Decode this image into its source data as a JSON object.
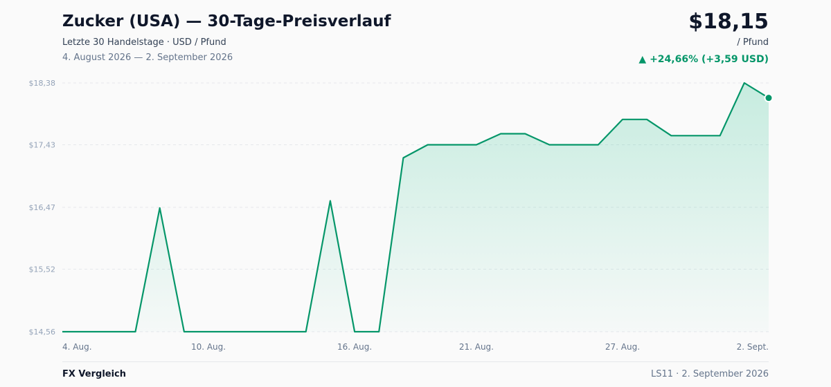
{
  "header": {
    "title": "Zucker (USA) — 30-Tage-Preisverlauf",
    "subtitle": "Letzte 30 Handelstage · USD / Pfund",
    "date_range": "4. August 2026 — 2. September 2026",
    "price": "$18,15",
    "unit": "/ Pfund",
    "change": "▲ +24,66% (+3,59 USD)"
  },
  "footer": {
    "brand": "FX Vergleich",
    "source": "LS11 · 2. September 2026"
  },
  "colors": {
    "line": "#059669",
    "fill": "#10b981",
    "grid": "#e5e7eb"
  },
  "chart_data": {
    "type": "area",
    "title": "Zucker (USA) — 30-Tage-Preisverlauf",
    "ylabel": "",
    "xlabel": "",
    "ylim": [
      14.56,
      18.38
    ],
    "grid": true,
    "ytick_values": [
      18.38,
      17.43,
      16.47,
      15.52,
      14.56
    ],
    "ytick_labels": [
      "$18,38",
      "$17,43",
      "$16,47",
      "$15,52",
      "$14,56"
    ],
    "xtick_index": [
      0,
      6,
      12,
      17,
      23,
      29
    ],
    "xtick_labels": [
      "4. Aug.",
      "10. Aug.",
      "16. Aug.",
      "21. Aug.",
      "27. Aug.",
      "2. Sept."
    ],
    "series": [
      {
        "values": [
          14.56,
          14.56,
          14.56,
          14.56,
          16.46,
          14.56,
          14.56,
          14.56,
          14.56,
          14.56,
          14.56,
          16.57,
          14.56,
          14.56,
          17.23,
          17.43,
          17.43,
          17.43,
          17.6,
          17.6,
          17.43,
          17.43,
          17.43,
          17.82,
          17.82,
          17.57,
          17.57,
          17.57,
          18.38,
          18.15
        ]
      }
    ]
  }
}
